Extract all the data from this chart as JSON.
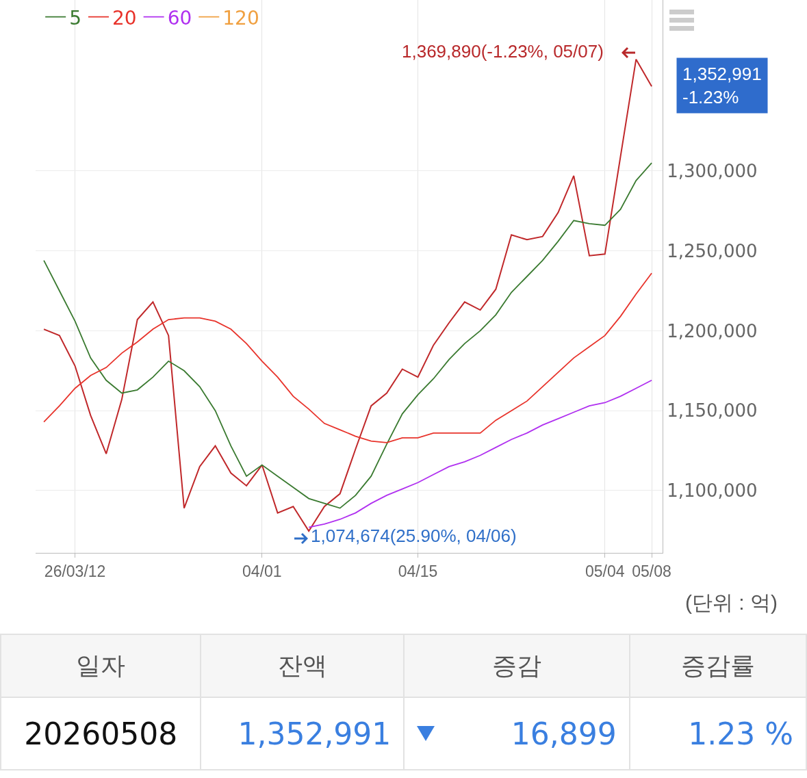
{
  "chart_data": [
    {
      "type": "line",
      "categories": [
        null,
        null,
        "26/03/12",
        null,
        null,
        null,
        null,
        null,
        null,
        null,
        null,
        null,
        null,
        null,
        "04/01",
        null,
        null,
        null,
        null,
        null,
        null,
        null,
        null,
        null,
        "04/15",
        null,
        null,
        null,
        null,
        null,
        null,
        null,
        null,
        null,
        null,
        null,
        "05/04",
        null,
        null,
        "05/08"
      ],
      "series": [
        {
          "color": "#c0282a",
          "values": [
            1201000,
            1197000,
            1178000,
            1147000,
            1123000,
            1157000,
            1207000,
            1218000,
            1197000,
            1089000,
            1115000,
            1128000,
            1111000,
            1103000,
            1116000,
            1086000,
            1090000,
            1074674,
            1090000,
            1098000,
            1126000,
            1153000,
            1161000,
            1176000,
            1171000,
            1191000,
            1205000,
            1218000,
            1213000,
            1226000,
            1260000,
            1257000,
            1259000,
            1274000,
            1297000,
            1247000,
            1248000,
            1309000,
            1369890,
            1352991
          ]
        },
        {
          "name": "5",
          "color": "#3a7a30",
          "values": [
            1244000,
            1225000,
            1206000,
            1183000,
            1169000,
            1161000,
            1163000,
            1171000,
            1181000,
            1175000,
            1165000,
            1150000,
            1128000,
            1109000,
            1116000,
            1109000,
            1102000,
            1095000,
            1092000,
            1089000,
            1097000,
            1109000,
            1129000,
            1148000,
            1160000,
            1170000,
            1182000,
            1192000,
            1200000,
            1210000,
            1224000,
            1234000,
            1244000,
            1256000,
            1269000,
            1267000,
            1266000,
            1276000,
            1294000,
            1305000
          ]
        },
        {
          "name": "20",
          "color": "#e8332b",
          "values": [
            1143000,
            1153000,
            1164000,
            1172000,
            1177000,
            1186000,
            1193000,
            1201000,
            1207000,
            1208000,
            1208000,
            1206000,
            1201000,
            1192000,
            1181000,
            1171000,
            1159000,
            1151000,
            1142000,
            1138000,
            1134000,
            1131000,
            1130000,
            1133000,
            1133000,
            1136000,
            1136000,
            1136000,
            1136000,
            1144000,
            1150000,
            1156000,
            1165000,
            1174000,
            1183000,
            1190000,
            1197000,
            1209000,
            1223000,
            1236000
          ]
        },
        {
          "name": "60",
          "color": "#b030f0",
          "values": [
            null,
            null,
            null,
            null,
            null,
            null,
            null,
            null,
            null,
            null,
            null,
            null,
            null,
            null,
            null,
            null,
            null,
            1077000,
            1079000,
            1082000,
            1086000,
            1092000,
            1097000,
            1101000,
            1105000,
            1110000,
            1115000,
            1118000,
            1122000,
            1127000,
            1132000,
            1136000,
            1141000,
            1145000,
            1149000,
            1153000,
            1155000,
            1159000,
            1164000,
            1169000
          ]
        },
        {
          "name": "120",
          "color": "#f0a040",
          "values": [
            null,
            null,
            null,
            null,
            null,
            null,
            null,
            null,
            null,
            null,
            null,
            null,
            null,
            null,
            null,
            null,
            null,
            null,
            null,
            null,
            null,
            null,
            null,
            null,
            null,
            null,
            null,
            null,
            null,
            null,
            null,
            null,
            null,
            null,
            null,
            null,
            null,
            null,
            null,
            null
          ]
        }
      ],
      "ylim": [
        1061000,
        1407000
      ],
      "yticks": [
        {
          "value": 1100000,
          "label": "1,100,000"
        },
        {
          "value": 1150000,
          "label": "1,150,000"
        },
        {
          "value": 1200000,
          "label": "1,200,000"
        },
        {
          "value": 1250000,
          "label": "1,250,000"
        },
        {
          "value": 1300000,
          "label": "1,300,000"
        }
      ],
      "grid": true,
      "legend": "top left",
      "annotations": [
        "1,369,890(-1.23%, 05/07)",
        "1,074,674(25.90%, 04/06)",
        "1,352,991\n-1.23%",
        "(단위 : 억)"
      ]
    },
    {
      "type": "other",
      "categories": [
        "일자",
        "잔액",
        "증감",
        "증감률"
      ],
      "annotations": [
        "20260508",
        "1,352,991",
        "16,899",
        "1.23 %"
      ]
    }
  ]
}
